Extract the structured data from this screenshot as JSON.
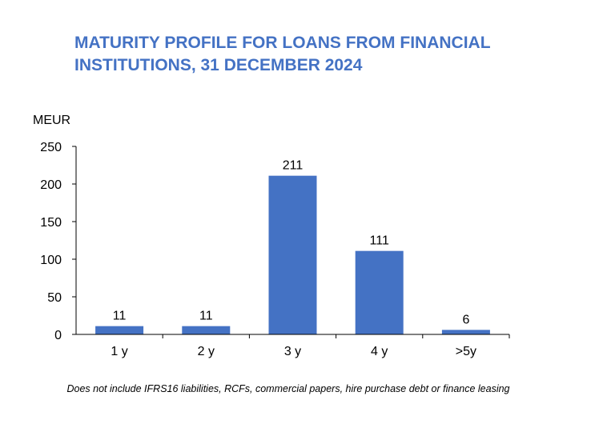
{
  "title_line1": "MATURITY PROFILE FOR LOANS FROM FINANCIAL",
  "title_line2": "INSTITUTIONS, 31 DECEMBER 2024",
  "footnote": "Does not include IFRS16 liabilities, RCFs, commercial papers, hire purchase debt or finance leasing",
  "colors": {
    "bar": "#4472C4",
    "title": "#4472C4",
    "axis": "#000000"
  },
  "chart_data": {
    "type": "bar",
    "title": "MATURITY PROFILE FOR LOANS FROM FINANCIAL INSTITUTIONS, 31 DECEMBER 2024",
    "ylabel": "MEUR",
    "xlabel": "",
    "categories": [
      "1 y",
      "2 y",
      "3 y",
      "4 y",
      ">5y"
    ],
    "values": [
      11,
      11,
      211,
      111,
      6
    ],
    "ylim": [
      0,
      250
    ],
    "yticks": [
      0,
      50,
      100,
      150,
      200,
      250
    ],
    "data_labels": true,
    "grid": false,
    "legend": "none"
  }
}
